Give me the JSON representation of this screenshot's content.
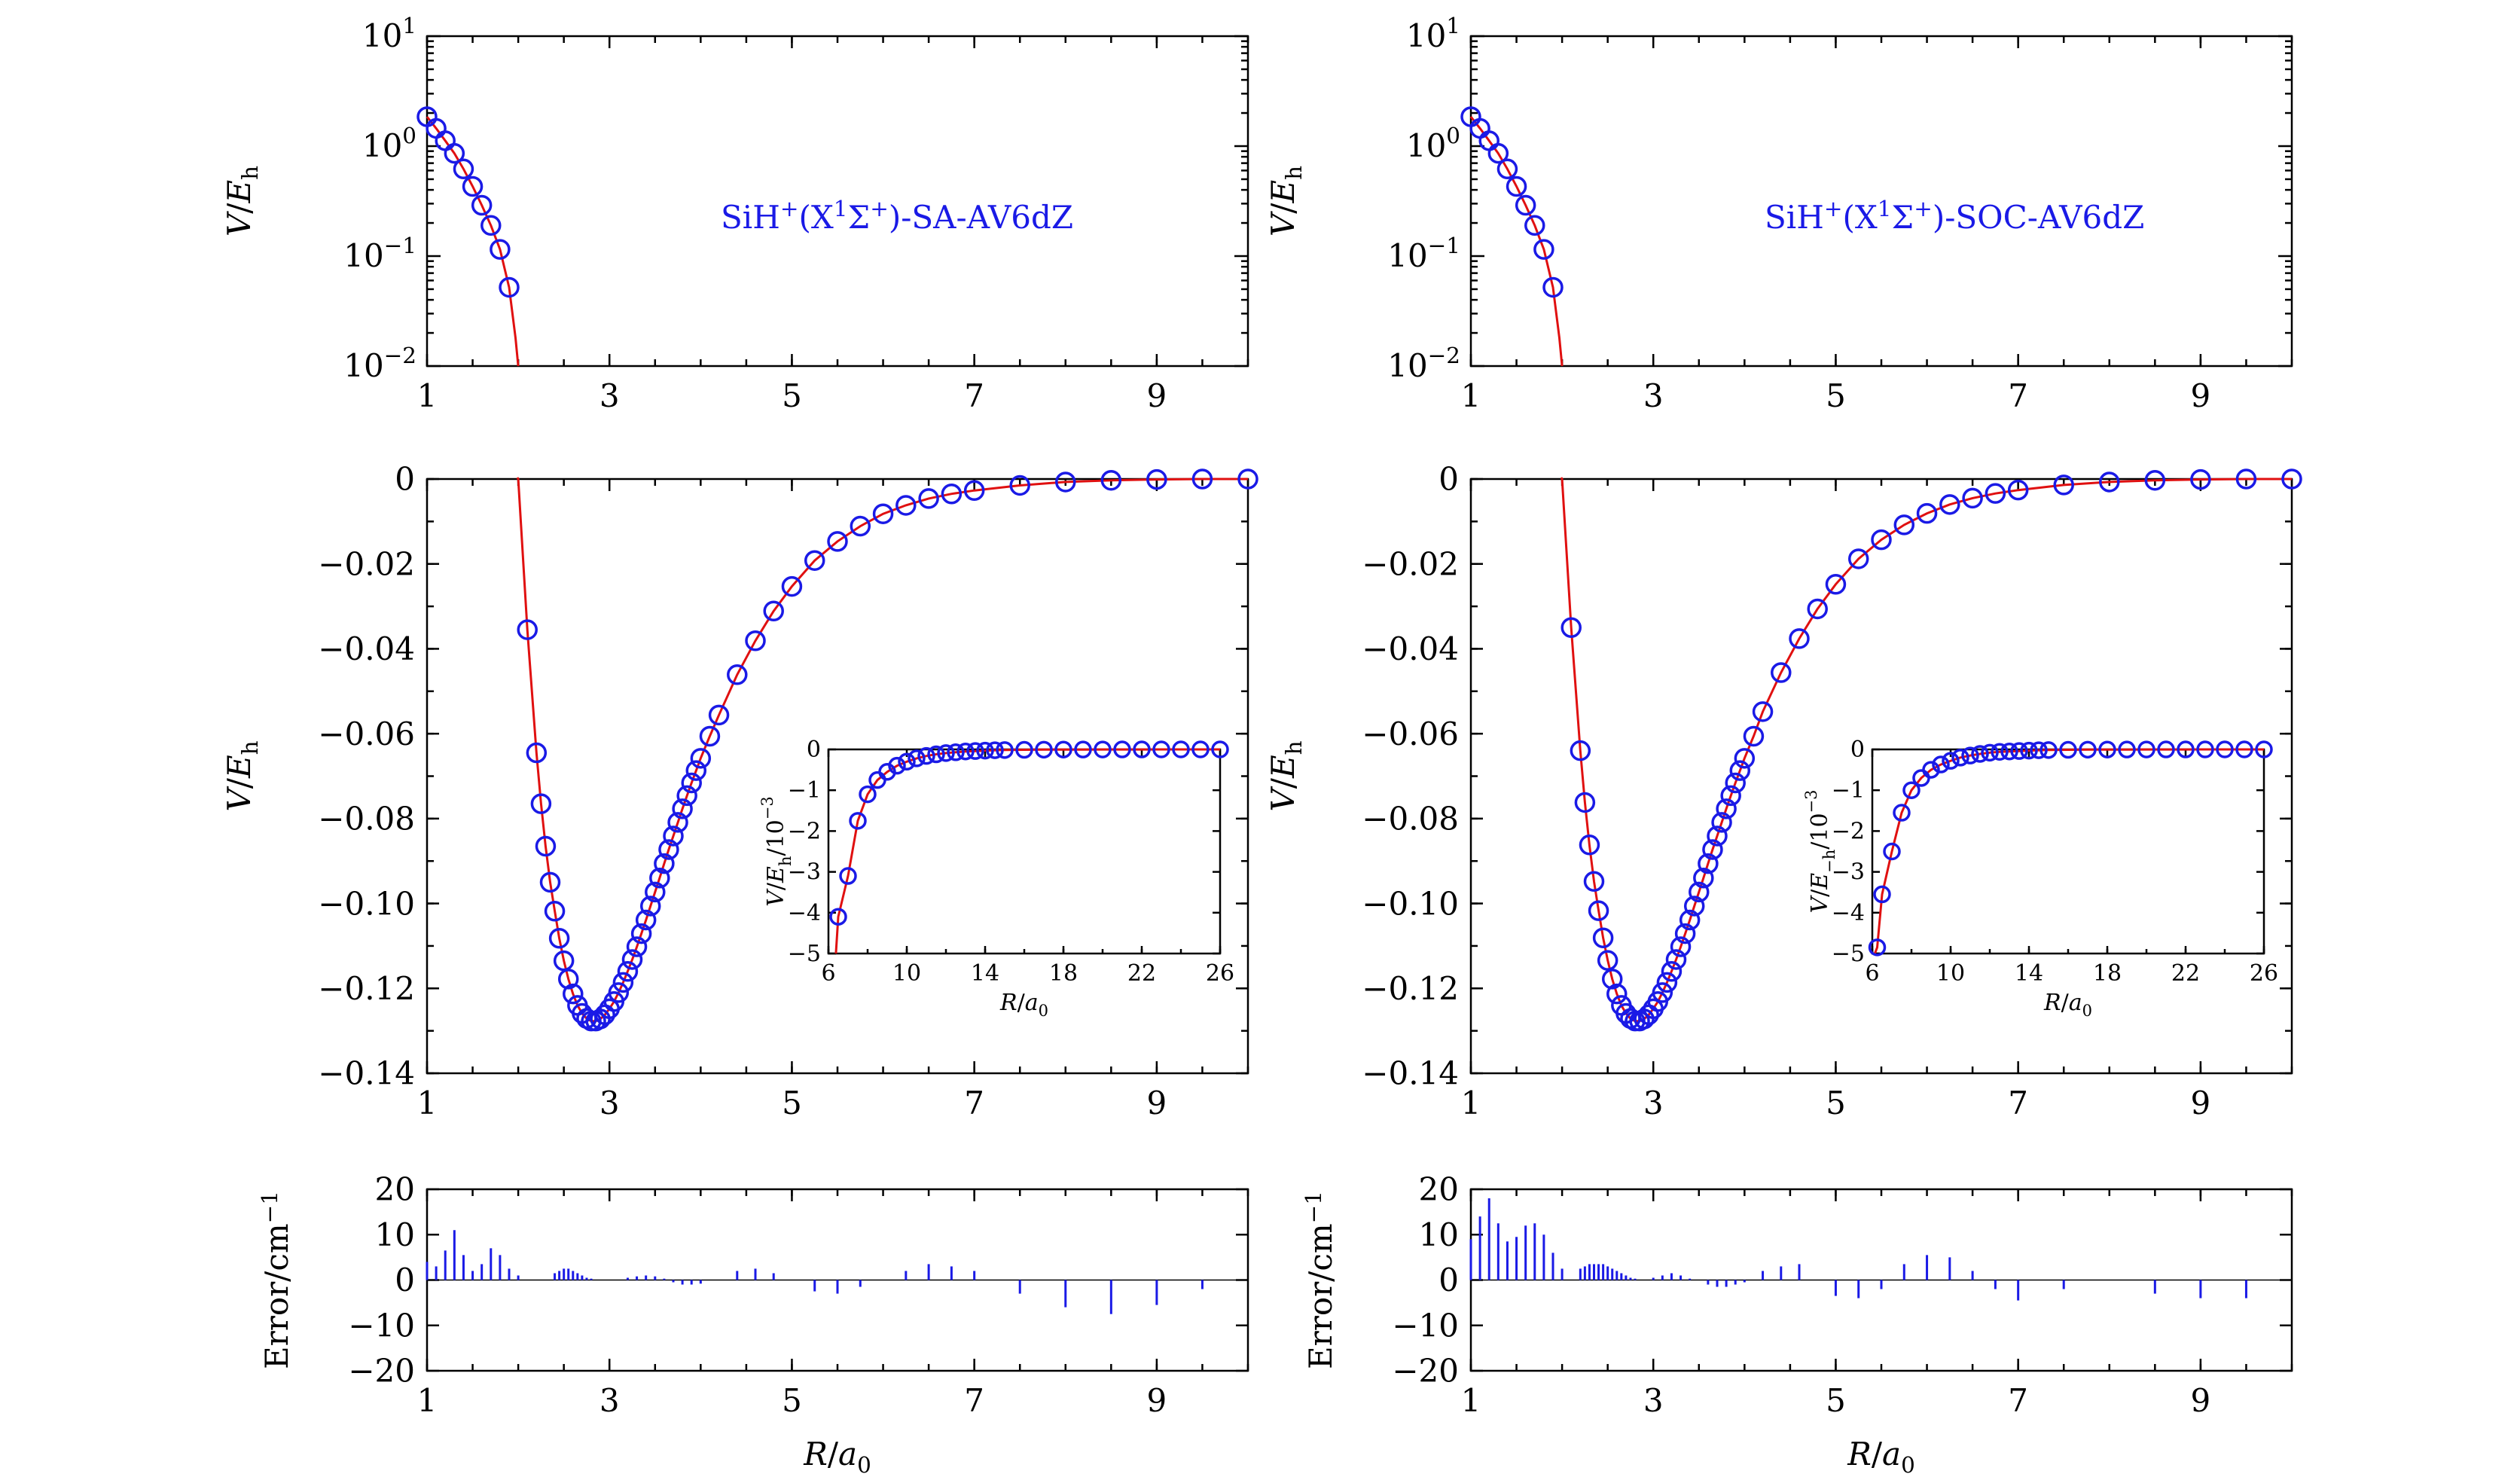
{
  "figure": {
    "xlabel": "R/a0",
    "xlabel_display": {
      "base": "R/a",
      "sub": "0"
    }
  },
  "chart_data": [
    {
      "id": "left-top",
      "type": "line",
      "title": "SiH+(X1Σ+)-SA-AV6dZ",
      "annotation": {
        "pre": "SiH",
        "sup1": "+",
        "mid1": "(X",
        "sup2": "1",
        "mid2": "Σ",
        "sup3": "+",
        "post": ")-SA-AV6dZ"
      },
      "scale": "log",
      "ylabel": "V/Eh",
      "ylim": [
        0.01,
        10
      ],
      "xlim": [
        1,
        10
      ],
      "xticks": [
        1,
        3,
        5,
        7,
        9
      ],
      "yticks": [
        {
          "value": 10,
          "base": "10",
          "exp": "1"
        },
        {
          "value": 1,
          "base": "10",
          "exp": "0"
        },
        {
          "value": 0.1,
          "base": "10",
          "exp": "−1"
        },
        {
          "value": 0.01,
          "base": "10",
          "exp": "−2"
        }
      ],
      "x": [
        1.0,
        1.1,
        1.2,
        1.3,
        1.4,
        1.5,
        1.6,
        1.7,
        1.8,
        1.9
      ],
      "y": [
        1.85,
        1.45,
        1.12,
        0.86,
        0.62,
        0.43,
        0.29,
        0.19,
        0.115,
        0.052
      ]
    },
    {
      "id": "right-top",
      "type": "line",
      "title": "SiH+(X1Σ+)-SOC-AV6dZ",
      "annotation": {
        "pre": "SiH",
        "sup1": "+",
        "mid1": "(X",
        "sup2": "1",
        "mid2": "Σ",
        "sup3": "+",
        "post": ")-SOC-AV6dZ"
      },
      "scale": "log",
      "ylabel": "V/Eh",
      "ylim": [
        0.01,
        10
      ],
      "xlim": [
        1,
        10
      ],
      "xticks": [
        1,
        3,
        5,
        7,
        9
      ],
      "yticks": [
        {
          "value": 10,
          "base": "10",
          "exp": "1"
        },
        {
          "value": 1,
          "base": "10",
          "exp": "0"
        },
        {
          "value": 0.1,
          "base": "10",
          "exp": "−1"
        },
        {
          "value": 0.01,
          "base": "10",
          "exp": "−2"
        }
      ],
      "x": [
        1.0,
        1.1,
        1.2,
        1.3,
        1.4,
        1.5,
        1.6,
        1.7,
        1.8,
        1.9
      ],
      "y": [
        1.85,
        1.45,
        1.12,
        0.86,
        0.62,
        0.43,
        0.29,
        0.19,
        0.115,
        0.052
      ]
    },
    {
      "id": "left-middle",
      "type": "line",
      "ylabel": "V/Eh",
      "ylim": [
        -0.14,
        0
      ],
      "xlim": [
        1,
        10
      ],
      "xticks": [
        1,
        3,
        5,
        7,
        9
      ],
      "yticks": [
        0,
        -0.02,
        -0.04,
        -0.06,
        -0.08,
        -0.1,
        -0.12,
        -0.14
      ],
      "ytick_labels": [
        "0",
        "−0.02",
        "−0.04",
        "−0.06",
        "−0.08",
        "−0.10",
        "−0.12",
        "−0.14"
      ],
      "x": [
        2.0,
        2.1,
        2.2,
        2.25,
        2.3,
        2.35,
        2.4,
        2.45,
        2.5,
        2.55,
        2.6,
        2.65,
        2.7,
        2.75,
        2.8,
        2.85,
        2.9,
        2.95,
        3.0,
        3.05,
        3.1,
        3.15,
        3.2,
        3.25,
        3.3,
        3.35,
        3.4,
        3.45,
        3.5,
        3.55,
        3.6,
        3.65,
        3.7,
        3.75,
        3.8,
        3.85,
        3.9,
        3.95,
        4.0,
        4.1,
        4.2,
        4.4,
        4.6,
        4.8,
        5.0,
        5.25,
        5.5,
        5.75,
        6.0,
        6.25,
        6.5,
        6.75,
        7.0,
        7.5,
        8.0,
        8.5,
        9.0,
        9.5,
        10.0
      ],
      "y": [
        0.0,
        -0.0355,
        -0.0645,
        -0.0765,
        -0.0865,
        -0.095,
        -0.1018,
        -0.1082,
        -0.1135,
        -0.1178,
        -0.1213,
        -0.124,
        -0.1259,
        -0.1271,
        -0.1277,
        -0.1277,
        -0.1272,
        -0.1262,
        -0.1248,
        -0.1231,
        -0.121,
        -0.1186,
        -0.116,
        -0.1132,
        -0.1102,
        -0.1071,
        -0.1039,
        -0.1006,
        -0.0973,
        -0.094,
        -0.0906,
        -0.0873,
        -0.0841,
        -0.0809,
        -0.0777,
        -0.0746,
        -0.0716,
        -0.0687,
        -0.0658,
        -0.0606,
        -0.0556,
        -0.0461,
        -0.0381,
        -0.0311,
        -0.0253,
        -0.0192,
        -0.0147,
        -0.0111,
        -0.0082,
        -0.0062,
        -0.0046,
        -0.0035,
        -0.0027,
        -0.0015,
        -0.0007,
        -0.0003,
        -0.0001,
        0.0,
        0.0
      ],
      "inset": {
        "ylabel": "V/Eh/10−3",
        "ylabel_display": {
          "a": "V/E",
          "sub": "h",
          "b": "/10",
          "sup": "−3"
        },
        "xlabel": "R/a0",
        "xlim": [
          6,
          26
        ],
        "ylim": [
          -5,
          0
        ],
        "xticks": [
          6,
          10,
          14,
          18,
          22,
          26
        ],
        "yticks": [
          0,
          -1,
          -2,
          -3,
          -4,
          -5
        ],
        "ytick_labels": [
          "0",
          "−1",
          "−2",
          "−3",
          "−4",
          "−5"
        ],
        "x": [
          6.5,
          7.0,
          7.5,
          8.0,
          8.5,
          9.0,
          9.5,
          10.0,
          10.5,
          11.0,
          11.5,
          12.0,
          12.5,
          13.0,
          13.5,
          14.0,
          14.5,
          15.0,
          16.0,
          17.0,
          18.0,
          19.0,
          20.0,
          21.0,
          22.0,
          23.0,
          24.0,
          25.0,
          26.0
        ],
        "y": [
          -4.1,
          -3.1,
          -1.75,
          -1.1,
          -0.75,
          -0.55,
          -0.4,
          -0.3,
          -0.22,
          -0.16,
          -0.12,
          -0.09,
          -0.07,
          -0.05,
          -0.04,
          -0.03,
          -0.02,
          -0.015,
          -0.01,
          -0.006,
          -0.004,
          -0.003,
          -0.002,
          -0.001,
          -0.001,
          0.0,
          0.0,
          0.0,
          0.0
        ]
      },
      "error": {
        "ylabel": "Error/cm−1",
        "ylabel_display": {
          "base": "Error/cm",
          "sup": "−1"
        },
        "ylim": [
          -20,
          20
        ],
        "yticks": [
          20,
          10,
          0,
          -10,
          -20
        ],
        "ytick_labels": [
          "20",
          "10",
          "0",
          "−10",
          "−20"
        ],
        "x": [
          1.0,
          1.1,
          1.2,
          1.3,
          1.4,
          1.5,
          1.6,
          1.7,
          1.8,
          1.9,
          2.0,
          2.4,
          2.45,
          2.5,
          2.55,
          2.6,
          2.65,
          2.7,
          2.75,
          2.8,
          3.2,
          3.3,
          3.4,
          3.5,
          3.6,
          3.7,
          3.8,
          3.9,
          4.0,
          4.4,
          4.6,
          4.8,
          5.25,
          5.5,
          5.75,
          6.25,
          6.5,
          6.75,
          7.0,
          7.5,
          8.0,
          8.5,
          9.0,
          9.5
        ],
        "values": [
          4.0,
          3.0,
          6.5,
          11.0,
          5.5,
          2.0,
          3.5,
          7.0,
          5.5,
          2.5,
          1.0,
          1.5,
          2.0,
          2.5,
          2.5,
          2.0,
          1.5,
          1.0,
          0.5,
          0.3,
          0.5,
          0.8,
          1.0,
          0.8,
          0.3,
          -0.5,
          -1.0,
          -1.0,
          -0.8,
          2.0,
          2.5,
          1.5,
          -2.5,
          -3.0,
          -1.5,
          2.0,
          3.5,
          3.0,
          2.0,
          -3.0,
          -6.0,
          -7.5,
          -5.5,
          -2.0
        ]
      }
    },
    {
      "id": "right-middle",
      "type": "line",
      "ylabel": "V/Eh",
      "ylim": [
        -0.14,
        0
      ],
      "xlim": [
        1,
        10
      ],
      "xticks": [
        1,
        3,
        5,
        7,
        9
      ],
      "yticks": [
        0,
        -0.02,
        -0.04,
        -0.06,
        -0.08,
        -0.1,
        -0.12,
        -0.14
      ],
      "ytick_labels": [
        "0",
        "−0.02",
        "−0.04",
        "−0.06",
        "−0.08",
        "−0.10",
        "−0.12",
        "−0.14"
      ],
      "x": [
        2.0,
        2.1,
        2.2,
        2.25,
        2.3,
        2.35,
        2.4,
        2.45,
        2.5,
        2.55,
        2.6,
        2.65,
        2.7,
        2.75,
        2.8,
        2.85,
        2.9,
        2.95,
        3.0,
        3.05,
        3.1,
        3.15,
        3.2,
        3.25,
        3.3,
        3.35,
        3.4,
        3.45,
        3.5,
        3.55,
        3.6,
        3.65,
        3.7,
        3.75,
        3.8,
        3.85,
        3.9,
        3.95,
        4.0,
        4.1,
        4.2,
        4.4,
        4.6,
        4.8,
        5.0,
        5.25,
        5.5,
        5.75,
        6.0,
        6.25,
        6.5,
        6.75,
        7.0,
        7.5,
        8.0,
        8.5,
        9.0,
        9.5,
        10.0
      ],
      "y": [
        0.0,
        -0.035,
        -0.064,
        -0.0762,
        -0.0862,
        -0.0948,
        -0.1017,
        -0.1081,
        -0.1134,
        -0.1178,
        -0.1213,
        -0.124,
        -0.1259,
        -0.1271,
        -0.1277,
        -0.1277,
        -0.1272,
        -0.1262,
        -0.1248,
        -0.1231,
        -0.121,
        -0.1186,
        -0.116,
        -0.1132,
        -0.1102,
        -0.1071,
        -0.1039,
        -0.1006,
        -0.0973,
        -0.094,
        -0.0906,
        -0.0873,
        -0.0841,
        -0.0809,
        -0.0777,
        -0.0746,
        -0.0716,
        -0.0687,
        -0.0658,
        -0.0606,
        -0.0548,
        -0.0456,
        -0.0376,
        -0.0306,
        -0.0248,
        -0.0188,
        -0.0143,
        -0.0108,
        -0.0081,
        -0.006,
        -0.0045,
        -0.0034,
        -0.0026,
        -0.0014,
        -0.0007,
        -0.0003,
        -0.0001,
        0.0,
        0.0
      ],
      "inset": {
        "ylabel": "V/E−h/10−3",
        "ylabel_display": {
          "a": "V/E",
          "sub": "−h",
          "b": "/10",
          "sup": "−3"
        },
        "xlabel": "R/a0",
        "xlim": [
          6,
          26
        ],
        "ylim": [
          -5,
          0
        ],
        "xticks": [
          6,
          10,
          14,
          18,
          22,
          26
        ],
        "yticks": [
          0,
          -1,
          -2,
          -3,
          -4,
          -5
        ],
        "ytick_labels": [
          "0",
          "−1",
          "−2",
          "−3",
          "−4",
          "−5"
        ],
        "x": [
          6.25,
          6.5,
          7.0,
          7.5,
          8.0,
          8.5,
          9.0,
          9.5,
          10.0,
          10.5,
          11.0,
          11.5,
          12.0,
          12.5,
          13.0,
          13.5,
          14.0,
          14.5,
          15.0,
          16.0,
          17.0,
          18.0,
          19.0,
          20.0,
          21.0,
          22.0,
          23.0,
          24.0,
          25.0,
          26.0
        ],
        "y": [
          -4.85,
          -3.55,
          -2.5,
          -1.55,
          -1.0,
          -0.7,
          -0.5,
          -0.37,
          -0.28,
          -0.2,
          -0.15,
          -0.11,
          -0.08,
          -0.06,
          -0.05,
          -0.04,
          -0.03,
          -0.02,
          -0.015,
          -0.01,
          -0.006,
          -0.004,
          -0.003,
          -0.002,
          -0.001,
          -0.001,
          0.0,
          0.0,
          0.0,
          0.0
        ]
      },
      "error": {
        "ylabel": "Error/cm−1",
        "ylabel_display": {
          "base": "Error/cm",
          "sup": "−1"
        },
        "ylim": [
          -20,
          20
        ],
        "yticks": [
          20,
          10,
          0,
          -10,
          -20
        ],
        "ytick_labels": [
          "20",
          "10",
          "0",
          "−10",
          "−20"
        ],
        "x": [
          1.0,
          1.1,
          1.2,
          1.3,
          1.4,
          1.5,
          1.6,
          1.7,
          1.8,
          1.9,
          2.0,
          2.2,
          2.25,
          2.3,
          2.35,
          2.4,
          2.45,
          2.5,
          2.55,
          2.6,
          2.65,
          2.7,
          2.75,
          2.8,
          3.0,
          3.1,
          3.2,
          3.3,
          3.4,
          3.6,
          3.7,
          3.8,
          3.9,
          4.0,
          4.2,
          4.4,
          4.6,
          5.0,
          5.25,
          5.5,
          5.75,
          6.0,
          6.25,
          6.5,
          6.75,
          7.0,
          7.5,
          8.5,
          9.0,
          9.5
        ],
        "values": [
          9.0,
          14.0,
          18.0,
          12.5,
          8.5,
          9.5,
          12.0,
          12.5,
          10.0,
          6.0,
          2.5,
          2.5,
          3.0,
          3.5,
          3.5,
          3.5,
          3.5,
          3.0,
          2.5,
          2.0,
          1.5,
          1.0,
          0.5,
          0.3,
          0.5,
          1.0,
          1.5,
          1.0,
          0.3,
          -1.0,
          -1.5,
          -1.5,
          -1.0,
          -0.5,
          2.0,
          3.0,
          3.5,
          -3.5,
          -4.0,
          -2.0,
          3.5,
          5.5,
          5.0,
          2.0,
          -2.0,
          -4.5,
          -2.0,
          -3.0,
          -4.0,
          -4.0
        ]
      }
    }
  ]
}
